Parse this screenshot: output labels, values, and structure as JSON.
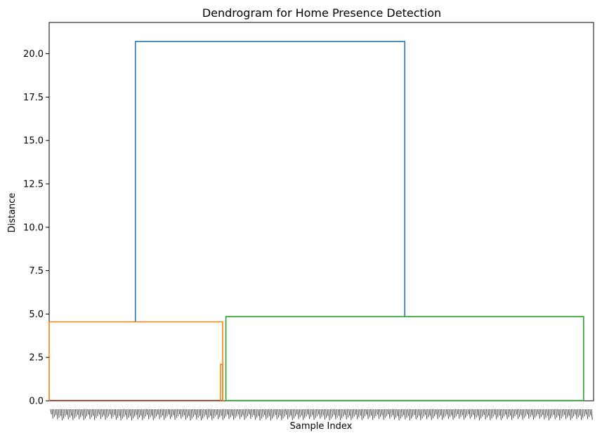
{
  "chart_data": {
    "type": "dendrogram",
    "title": "Dendrogram for Home Presence Detection",
    "xlabel": "Sample Index",
    "ylabel": "Distance",
    "ylim": [
      0,
      21.8
    ],
    "yticks": [
      "0.0",
      "2.5",
      "5.0",
      "7.5",
      "10.0",
      "12.5",
      "15.0",
      "17.5",
      "20.0"
    ],
    "ytick_values": [
      0,
      2.5,
      5,
      7.5,
      10,
      12.5,
      15,
      17.5,
      20
    ],
    "grid": false,
    "colors": {
      "root": "#1f77b4",
      "cluster_1": "#ff7f0e",
      "cluster_2": "#2ca02c",
      "low": "#8c2d19"
    },
    "merges": [
      {
        "name": "root-merge",
        "color": "#1f77b4",
        "left_x": 0.16,
        "right_x": 0.66,
        "height": 20.7,
        "left_child_height": 4.55,
        "right_child_height": 4.85
      },
      {
        "name": "cluster-1-merge",
        "color": "#ff7f0e",
        "left_x": 0.0,
        "right_x": 0.322,
        "height": 4.55,
        "left_child_height": 0.0,
        "right_child_height": 0.0
      },
      {
        "name": "cluster-1-sub-merge",
        "color": "#ff7f0e",
        "left_x": 0.318,
        "right_x": 0.322,
        "height": 2.1,
        "left_child_height": 0.0,
        "right_child_height": 0.0
      },
      {
        "name": "cluster-2-merge",
        "color": "#2ca02c",
        "left_x": 0.328,
        "right_x": 0.992,
        "height": 4.85,
        "left_child_height": 0.0,
        "right_child_height": 0.0
      }
    ],
    "low_segments": [
      {
        "name": "cluster-1-base",
        "color": "#8c2d19",
        "x0": 0.0,
        "x1": 0.322,
        "height": 0.0
      },
      {
        "name": "cluster-2-base",
        "color": "#2ca02c",
        "x0": 0.328,
        "x1": 0.992,
        "height": 0.0
      }
    ]
  }
}
